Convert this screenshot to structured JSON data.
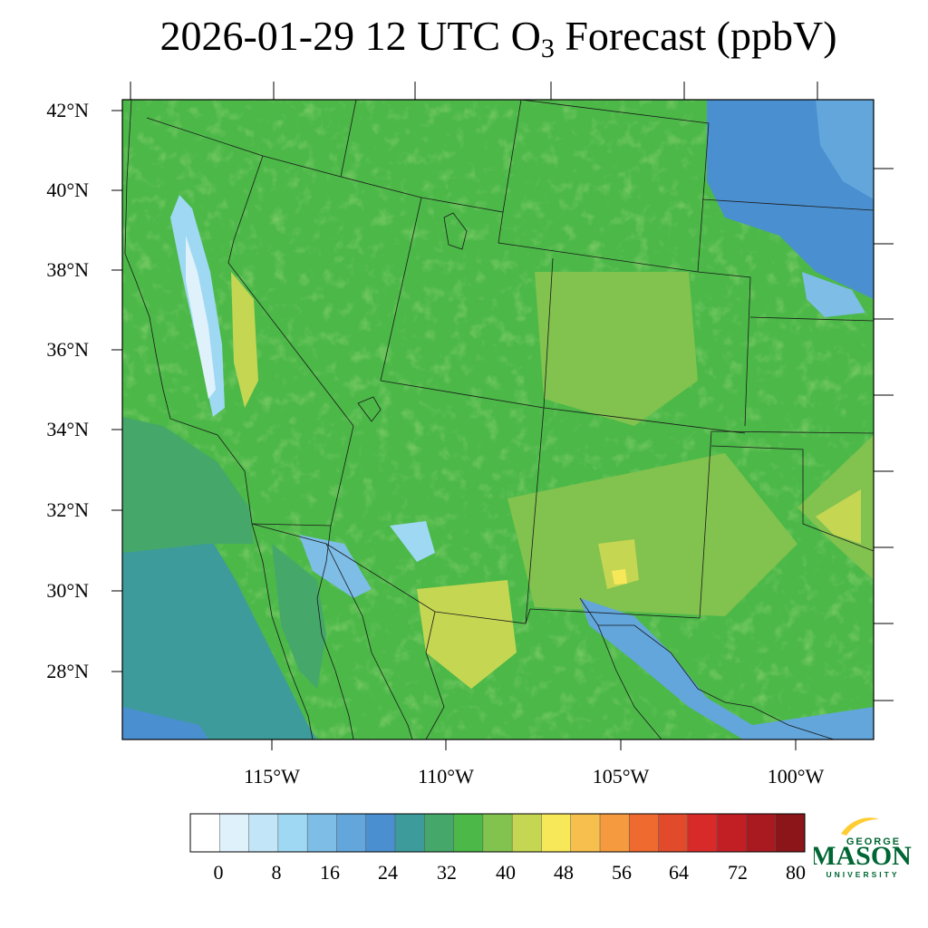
{
  "header": {
    "title_main": "2026-01-29 12 UTC O",
    "title_sub": "3",
    "title_tail": " Forecast (ppbV)"
  },
  "map": {
    "projection": "lambert-conformal",
    "region": "Southwestern United States and northern Mexico",
    "lat_labels": [
      "42°N",
      "40°N",
      "38°N",
      "36°N",
      "34°N",
      "32°N",
      "30°N",
      "28°N"
    ],
    "lon_labels": [
      "115°W",
      "110°W",
      "105°W",
      "100°W"
    ],
    "background_color": "#4bb848",
    "ocean_color": "#3a9f9a"
  },
  "colorbar": {
    "labels": [
      "0",
      "8",
      "16",
      "24",
      "32",
      "40",
      "48",
      "56",
      "64",
      "72",
      "80"
    ],
    "colors": [
      "#ffffff",
      "#dff1fb",
      "#c2e6f7",
      "#9ed8f3",
      "#7dbde6",
      "#62a6dc",
      "#4a8fcf",
      "#3d9b9b",
      "#45a86a",
      "#4bb848",
      "#82c24e",
      "#c5d653",
      "#f7e85a",
      "#f6bf4e",
      "#f59a3e",
      "#ef6a2e",
      "#e14a2a",
      "#d92a2a",
      "#c21f24",
      "#a81a20",
      "#8c1519"
    ]
  },
  "logo": {
    "line1": "GEORGE",
    "line2": "MASON",
    "line3": "UNIVERSITY",
    "green": "#006633",
    "gold": "#ffcc33"
  }
}
